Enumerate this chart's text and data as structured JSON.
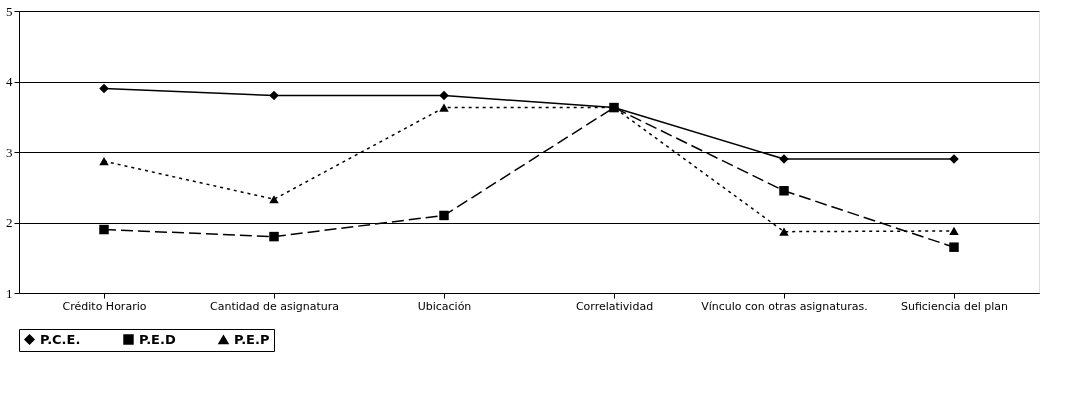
{
  "chart_data": {
    "type": "line",
    "categories": [
      "Crédito Horario",
      "Cantidad de asignatura",
      "Ubicación",
      "Correlatividad",
      "Vínculo con otras asignaturas.",
      "Suficiencia del plan"
    ],
    "series": [
      {
        "name": "P.C.E.",
        "color": "#000000",
        "marker": "diamond",
        "line_style": "solid",
        "values": [
          3.9,
          3.8,
          3.8,
          3.63,
          2.9,
          2.9
        ]
      },
      {
        "name": "P.E.D",
        "color": "#000000",
        "marker": "square",
        "line_style": "dashed",
        "values": [
          1.9,
          1.8,
          2.1,
          3.63,
          2.45,
          1.65
        ]
      },
      {
        "name": "P.E.P",
        "color": "#000000",
        "marker": "triangle",
        "line_style": "dotted",
        "values": [
          2.87,
          2.33,
          3.63,
          3.63,
          1.87,
          1.88
        ]
      }
    ],
    "ylim": [
      1,
      5
    ],
    "yticks": [
      1,
      2,
      3,
      4,
      5
    ],
    "grid": "y",
    "legend": "bottom"
  }
}
